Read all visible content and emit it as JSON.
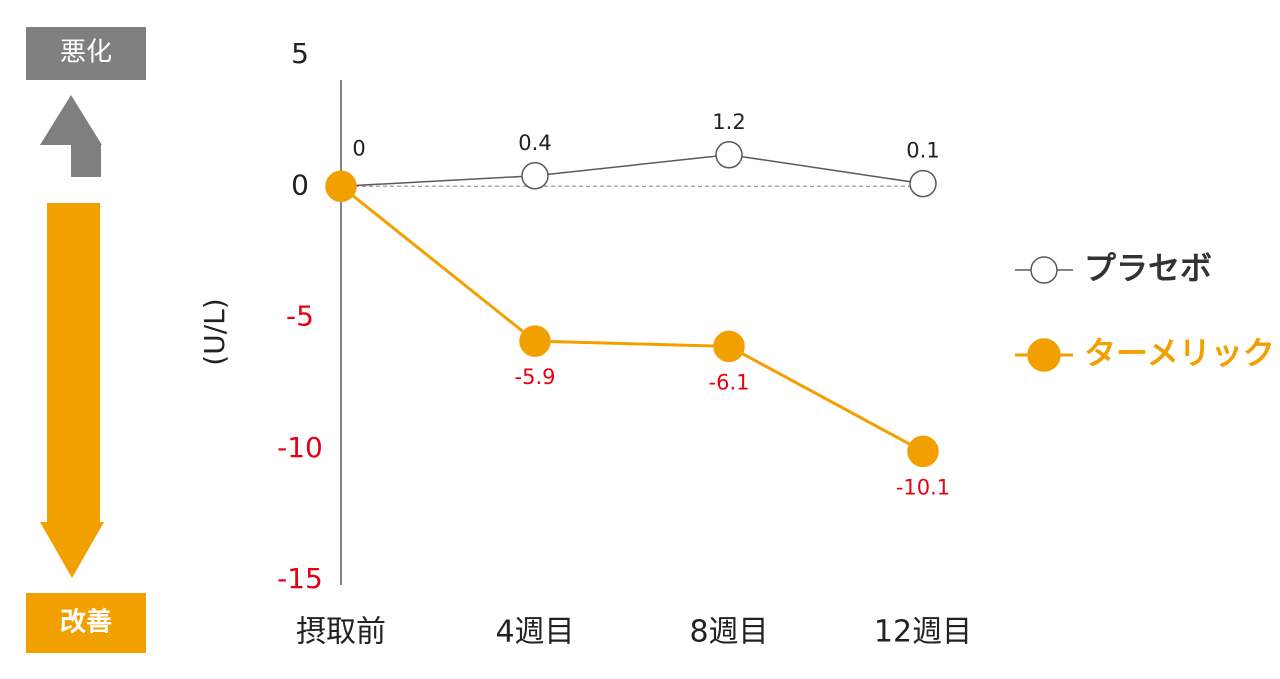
{
  "chart_data": {
    "type": "line",
    "y_label": "(U/L)",
    "categories": [
      "摂取前",
      "4週目",
      "8週目",
      "12週目"
    ],
    "series": [
      {
        "name": "プラセボ",
        "color": "#595959",
        "marker_fill": "#ffffff",
        "values": [
          0,
          0.4,
          1.2,
          0.1
        ]
      },
      {
        "name": "ターメリック",
        "color": "#f2a000",
        "marker_fill": "#f2a000",
        "values": [
          0,
          -5.9,
          -6.1,
          -10.1
        ]
      }
    ],
    "ylim": [
      -15,
      5
    ],
    "yticks": [
      5,
      0,
      -5,
      -10,
      -15
    ],
    "negative_color": "#e60012",
    "zero_line": true,
    "legend": "right"
  },
  "side_labels": {
    "worse": "悪化",
    "better": "改善"
  }
}
